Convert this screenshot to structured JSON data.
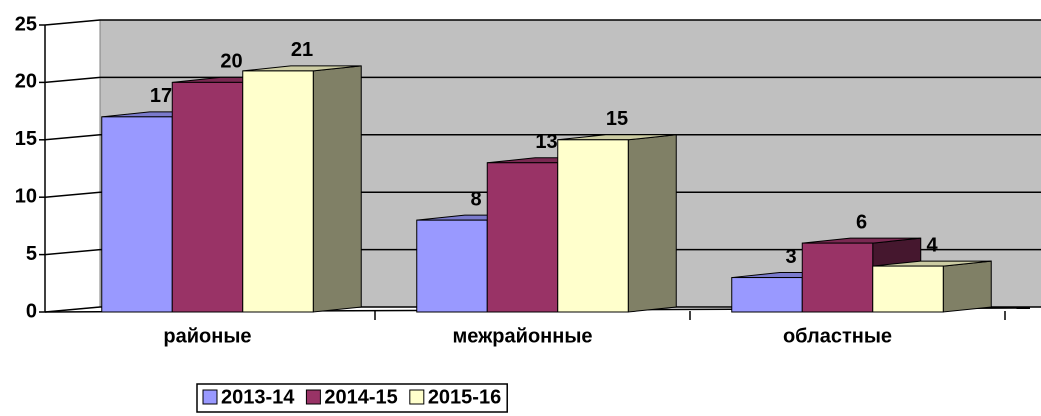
{
  "chart_data": {
    "type": "bar3d",
    "categories": [
      "районые",
      "межрайонные",
      "областные"
    ],
    "series": [
      {
        "name": "2013-14",
        "color": "#9999ff",
        "values": [
          17,
          8,
          3
        ]
      },
      {
        "name": "2014-15",
        "color": "#993366",
        "values": [
          20,
          13,
          6
        ]
      },
      {
        "name": "2015-16",
        "color": "#ffffcc",
        "values": [
          21,
          15,
          4
        ]
      }
    ],
    "ylim": [
      0,
      25
    ],
    "yticks": [
      0,
      5,
      10,
      15,
      20,
      25
    ],
    "grid": true,
    "legend": "bottom"
  }
}
